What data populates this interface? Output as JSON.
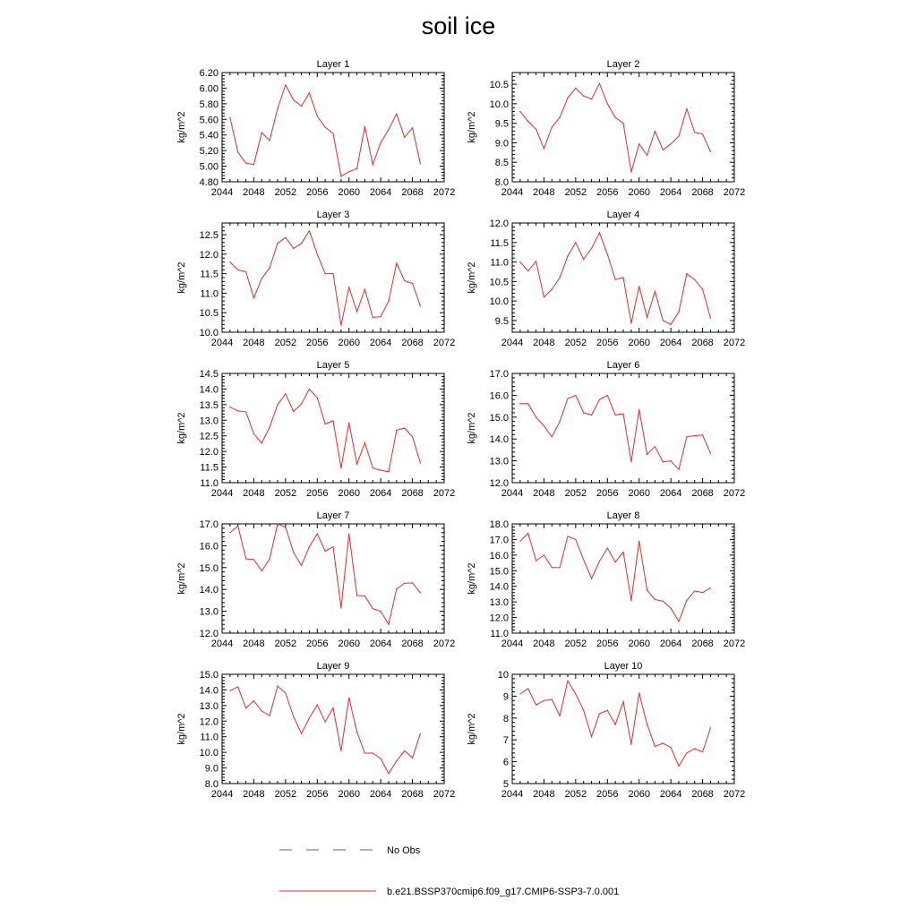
{
  "title": "soil ice",
  "legend": [
    {
      "label": "No Obs",
      "color": "#5a5aa8",
      "style": "dashed"
    },
    {
      "label": "b.e21.BSSP370cmip6.f09_g17.CMIP6-SSP3-7.0.001",
      "color": "#e8282a",
      "style": "solid"
    }
  ],
  "chart_data": [
    {
      "type": "line",
      "title": "Layer 1",
      "ylabel": "kg/m^2",
      "xlim": [
        2044,
        2072
      ],
      "ylim": [
        4.8,
        6.2
      ],
      "xticks": [
        "2044",
        "2048",
        "2052",
        "2056",
        "2060",
        "2064",
        "2068",
        "2072"
      ],
      "yticks": [
        "4.80",
        "5.00",
        "5.20",
        "5.40",
        "5.60",
        "5.80",
        "6.00",
        "6.20"
      ],
      "series": [
        {
          "color": "#e8282a",
          "x": [
            2045,
            2046,
            2047,
            2048,
            2049,
            2050,
            2051,
            2052,
            2053,
            2054,
            2055,
            2056,
            2057,
            2058,
            2059,
            2060,
            2061,
            2062,
            2063,
            2064,
            2065,
            2066,
            2067,
            2068,
            2069
          ],
          "values": [
            5.62,
            5.18,
            5.04,
            5.02,
            5.43,
            5.33,
            5.74,
            6.04,
            5.85,
            5.77,
            5.94,
            5.64,
            5.5,
            5.42,
            4.87,
            4.93,
            4.97,
            5.51,
            5.02,
            5.3,
            5.47,
            5.67,
            5.37,
            5.49,
            5.03
          ]
        }
      ]
    },
    {
      "type": "line",
      "title": "Layer 2",
      "ylabel": "kg/m^2",
      "xlim": [
        2044,
        2072
      ],
      "ylim": [
        8.0,
        10.8
      ],
      "xticks": [
        "2044",
        "2048",
        "2052",
        "2056",
        "2060",
        "2064",
        "2068",
        "2072"
      ],
      "yticks": [
        "8.0",
        "8.5",
        "9.0",
        "9.5",
        "10.0",
        "10.5"
      ],
      "series": [
        {
          "color": "#e8282a",
          "x": [
            2045,
            2046,
            2047,
            2048,
            2049,
            2050,
            2051,
            2052,
            2053,
            2054,
            2055,
            2056,
            2057,
            2058,
            2059,
            2060,
            2061,
            2062,
            2063,
            2064,
            2065,
            2066,
            2067,
            2068,
            2069
          ],
          "values": [
            9.8,
            9.55,
            9.35,
            8.85,
            9.4,
            9.65,
            10.15,
            10.4,
            10.2,
            10.12,
            10.52,
            10.0,
            9.65,
            9.5,
            8.25,
            8.97,
            8.68,
            9.3,
            8.82,
            8.97,
            9.17,
            9.87,
            9.27,
            9.22,
            8.77
          ]
        }
      ]
    },
    {
      "type": "line",
      "title": "Layer 3",
      "ylabel": "kg/m^2",
      "xlim": [
        2044,
        2072
      ],
      "ylim": [
        10.0,
        12.8
      ],
      "xticks": [
        "2044",
        "2048",
        "2052",
        "2056",
        "2060",
        "2064",
        "2068",
        "2072"
      ],
      "yticks": [
        "10.0",
        "10.5",
        "11.0",
        "11.5",
        "12.0",
        "12.5"
      ],
      "series": [
        {
          "color": "#e8282a",
          "x": [
            2045,
            2046,
            2047,
            2048,
            2049,
            2050,
            2051,
            2052,
            2053,
            2054,
            2055,
            2056,
            2057,
            2058,
            2059,
            2060,
            2061,
            2062,
            2063,
            2064,
            2065,
            2066,
            2067,
            2068,
            2069
          ],
          "values": [
            11.8,
            11.6,
            11.55,
            10.88,
            11.38,
            11.65,
            12.28,
            12.43,
            12.15,
            12.28,
            12.6,
            12.0,
            11.5,
            11.5,
            10.18,
            11.15,
            10.53,
            11.1,
            10.38,
            10.4,
            10.8,
            11.77,
            11.32,
            11.25,
            10.67
          ]
        }
      ]
    },
    {
      "type": "line",
      "title": "Layer 4",
      "ylabel": "kg/m^2",
      "xlim": [
        2044,
        2072
      ],
      "ylim": [
        9.2,
        12.0
      ],
      "xticks": [
        "2044",
        "2048",
        "2052",
        "2056",
        "2060",
        "2064",
        "2068",
        "2072"
      ],
      "yticks": [
        "9.5",
        "10.0",
        "10.5",
        "11.0",
        "11.5",
        "12.0"
      ],
      "series": [
        {
          "color": "#e8282a",
          "x": [
            2045,
            2046,
            2047,
            2048,
            2049,
            2050,
            2051,
            2052,
            2053,
            2054,
            2055,
            2056,
            2057,
            2058,
            2059,
            2060,
            2061,
            2062,
            2063,
            2064,
            2065,
            2066,
            2067,
            2068,
            2069
          ],
          "values": [
            11.0,
            10.77,
            11.02,
            10.1,
            10.3,
            10.6,
            11.15,
            11.5,
            11.07,
            11.35,
            11.75,
            11.2,
            10.55,
            10.6,
            9.43,
            10.38,
            9.58,
            10.25,
            9.5,
            9.4,
            9.72,
            10.7,
            10.55,
            10.3,
            9.56
          ]
        }
      ]
    },
    {
      "type": "line",
      "title": "Layer 5",
      "ylabel": "kg/m^2",
      "xlim": [
        2044,
        2072
      ],
      "ylim": [
        11.0,
        14.5
      ],
      "xticks": [
        "2044",
        "2048",
        "2052",
        "2056",
        "2060",
        "2064",
        "2068",
        "2072"
      ],
      "yticks": [
        "11.0",
        "11.5",
        "12.0",
        "12.5",
        "13.0",
        "13.5",
        "14.0",
        "14.5"
      ],
      "series": [
        {
          "color": "#e8282a",
          "x": [
            2045,
            2046,
            2047,
            2048,
            2049,
            2050,
            2051,
            2052,
            2053,
            2054,
            2055,
            2056,
            2057,
            2058,
            2059,
            2060,
            2061,
            2062,
            2063,
            2064,
            2065,
            2066,
            2067,
            2068,
            2069
          ],
          "values": [
            13.42,
            13.3,
            13.27,
            12.57,
            12.27,
            12.78,
            13.5,
            13.85,
            13.28,
            13.52,
            14.0,
            13.72,
            12.88,
            12.98,
            11.47,
            12.92,
            11.6,
            12.28,
            11.47,
            11.4,
            11.35,
            12.68,
            12.75,
            12.47,
            11.63
          ]
        }
      ]
    },
    {
      "type": "line",
      "title": "Layer 6",
      "ylabel": "kg/m^2",
      "xlim": [
        2044,
        2072
      ],
      "ylim": [
        12.0,
        17.0
      ],
      "xticks": [
        "2044",
        "2048",
        "2052",
        "2056",
        "2060",
        "2064",
        "2068",
        "2072"
      ],
      "yticks": [
        "12.0",
        "13.0",
        "14.0",
        "15.0",
        "16.0",
        "17.0"
      ],
      "series": [
        {
          "color": "#e8282a",
          "x": [
            2045,
            2046,
            2047,
            2048,
            2049,
            2050,
            2051,
            2052,
            2053,
            2054,
            2055,
            2056,
            2057,
            2058,
            2059,
            2060,
            2061,
            2062,
            2063,
            2064,
            2065,
            2066,
            2067,
            2068,
            2069
          ],
          "values": [
            15.62,
            15.62,
            15.0,
            14.6,
            14.1,
            14.8,
            15.85,
            16.0,
            15.2,
            15.1,
            15.8,
            16.0,
            15.1,
            15.15,
            12.95,
            15.35,
            13.3,
            13.65,
            12.95,
            13.0,
            12.6,
            14.1,
            14.15,
            14.18,
            13.35
          ]
        }
      ]
    },
    {
      "type": "line",
      "title": "Layer 7",
      "ylabel": "kg/m^2",
      "xlim": [
        2044,
        2072
      ],
      "ylim": [
        12.0,
        17.0
      ],
      "xticks": [
        "2044",
        "2048",
        "2052",
        "2056",
        "2060",
        "2064",
        "2068",
        "2072"
      ],
      "yticks": [
        "12.0",
        "13.0",
        "14.0",
        "15.0",
        "16.0",
        "17.0"
      ],
      "series": [
        {
          "color": "#e8282a",
          "x": [
            2045,
            2046,
            2047,
            2048,
            2049,
            2050,
            2051,
            2052,
            2053,
            2054,
            2055,
            2056,
            2057,
            2058,
            2059,
            2060,
            2061,
            2062,
            2063,
            2064,
            2065,
            2066,
            2067,
            2068,
            2069
          ],
          "values": [
            16.6,
            16.9,
            15.4,
            15.37,
            14.85,
            15.4,
            17.0,
            16.85,
            15.7,
            15.1,
            15.95,
            16.55,
            15.75,
            15.95,
            13.15,
            16.55,
            13.72,
            13.7,
            13.12,
            13.0,
            12.4,
            14.03,
            14.28,
            14.3,
            13.85
          ]
        }
      ]
    },
    {
      "type": "line",
      "title": "Layer 8",
      "ylabel": "kg/m^2",
      "xlim": [
        2044,
        2072
      ],
      "ylim": [
        11.0,
        18.0
      ],
      "xticks": [
        "2044",
        "2048",
        "2052",
        "2056",
        "2060",
        "2064",
        "2068",
        "2072"
      ],
      "yticks": [
        "11.0",
        "12.0",
        "13.0",
        "14.0",
        "15.0",
        "16.0",
        "17.0",
        "18.0"
      ],
      "series": [
        {
          "color": "#e8282a",
          "x": [
            2045,
            2046,
            2047,
            2048,
            2049,
            2050,
            2051,
            2052,
            2053,
            2054,
            2055,
            2056,
            2057,
            2058,
            2059,
            2060,
            2061,
            2062,
            2063,
            2064,
            2065,
            2066,
            2067,
            2068,
            2069
          ],
          "values": [
            16.9,
            17.4,
            15.65,
            16.0,
            15.2,
            15.2,
            17.2,
            17.0,
            15.7,
            14.5,
            15.6,
            16.45,
            15.55,
            16.2,
            13.1,
            16.9,
            13.75,
            13.15,
            13.05,
            12.6,
            11.75,
            13.1,
            13.7,
            13.6,
            13.9
          ]
        }
      ]
    },
    {
      "type": "line",
      "title": "Layer 9",
      "ylabel": "kg/m^2",
      "xlim": [
        2044,
        2072
      ],
      "ylim": [
        8.0,
        15.0
      ],
      "xticks": [
        "2044",
        "2048",
        "2052",
        "2056",
        "2060",
        "2064",
        "2068",
        "2072"
      ],
      "yticks": [
        "8.0",
        "9.0",
        "10.0",
        "11.0",
        "12.0",
        "13.0",
        "14.0",
        "15.0"
      ],
      "series": [
        {
          "color": "#e8282a",
          "x": [
            2045,
            2046,
            2047,
            2048,
            2049,
            2050,
            2051,
            2052,
            2053,
            2054,
            2055,
            2056,
            2057,
            2058,
            2059,
            2060,
            2061,
            2062,
            2063,
            2064,
            2065,
            2066,
            2067,
            2068,
            2069
          ],
          "values": [
            13.95,
            14.2,
            12.85,
            13.3,
            12.65,
            12.35,
            14.25,
            13.8,
            12.3,
            11.2,
            12.2,
            13.05,
            11.95,
            12.85,
            10.1,
            13.5,
            11.3,
            9.95,
            9.95,
            9.6,
            8.65,
            9.45,
            10.1,
            9.65,
            11.2
          ]
        }
      ]
    },
    {
      "type": "line",
      "title": "Layer 10",
      "ylabel": "kg/m^2",
      "xlim": [
        2044,
        2072
      ],
      "ylim": [
        5,
        10
      ],
      "xticks": [
        "2044",
        "2048",
        "2052",
        "2056",
        "2060",
        "2064",
        "2068",
        "2072"
      ],
      "yticks": [
        "5",
        "6",
        "7",
        "8",
        "9",
        "10"
      ],
      "series": [
        {
          "color": "#e8282a",
          "x": [
            2045,
            2046,
            2047,
            2048,
            2049,
            2050,
            2051,
            2052,
            2053,
            2054,
            2055,
            2056,
            2057,
            2058,
            2059,
            2060,
            2061,
            2062,
            2063,
            2064,
            2065,
            2066,
            2067,
            2068,
            2069
          ],
          "values": [
            9.1,
            9.35,
            8.6,
            8.8,
            8.85,
            8.1,
            9.7,
            9.1,
            8.35,
            7.15,
            8.2,
            8.35,
            7.7,
            8.75,
            6.8,
            9.15,
            7.7,
            6.7,
            6.85,
            6.65,
            5.8,
            6.4,
            6.6,
            6.45,
            7.55
          ]
        }
      ]
    }
  ]
}
